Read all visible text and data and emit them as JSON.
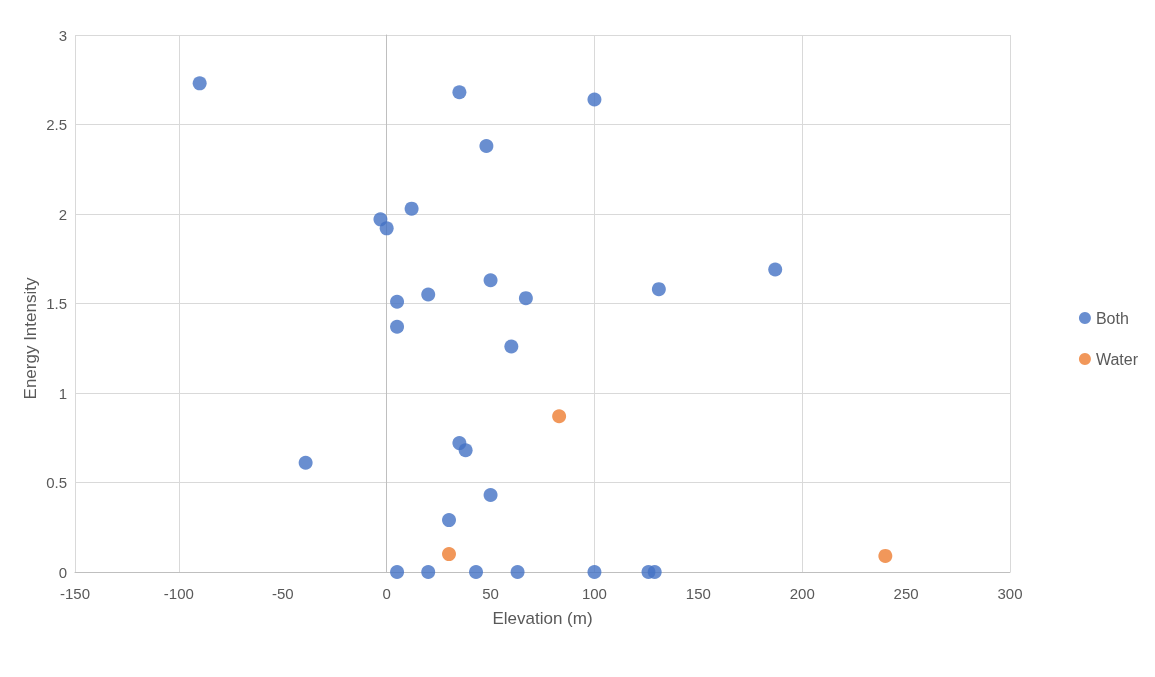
{
  "chart_data": {
    "type": "scatter",
    "xlabel": "Elevation (m)",
    "ylabel": "Energy Intensity",
    "xlim": [
      -150,
      300
    ],
    "xticks": [
      -150,
      -100,
      -50,
      0,
      50,
      100,
      150,
      200,
      250,
      300
    ],
    "ylim": [
      0,
      3
    ],
    "yticks": [
      0,
      0.5,
      1,
      1.5,
      2,
      2.5,
      3
    ],
    "grid": true,
    "legend": "right",
    "marker": "circle",
    "series": [
      {
        "name": "Both",
        "color": "#4472c4",
        "x": [
          -90,
          35,
          100,
          48,
          12,
          -3,
          0,
          187,
          50,
          131,
          5,
          20,
          67,
          5,
          60,
          -39,
          35,
          38,
          50,
          30,
          5,
          20,
          43,
          63,
          100,
          126,
          129
        ],
        "values": [
          2.73,
          2.68,
          2.64,
          2.38,
          2.03,
          1.97,
          1.92,
          1.69,
          1.63,
          1.58,
          1.51,
          1.55,
          1.53,
          1.37,
          1.26,
          0.61,
          0.72,
          0.68,
          0.43,
          0.29,
          0,
          0,
          0,
          0,
          0,
          0,
          0
        ]
      },
      {
        "name": "Water",
        "color": "#ed7d31",
        "x": [
          30,
          83,
          240
        ],
        "values": [
          0.1,
          0.87,
          0.09
        ]
      }
    ]
  }
}
